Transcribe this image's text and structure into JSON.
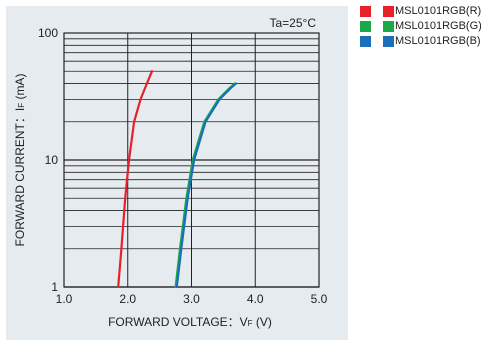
{
  "chart_data": {
    "type": "line",
    "annotation": "Ta=25°C",
    "xlabel": "FORWARD VOLTAGE：V",
    "xlabel_sub": "F",
    "xlabel_unit": " (V)",
    "ylabel": "FORWARD CURRENT：I",
    "ylabel_sub": "F",
    "ylabel_unit": " (mA)",
    "x_ticks": [
      "1.0",
      "2.0",
      "3.0",
      "4.0",
      "5.0"
    ],
    "y_ticks": [
      "1",
      "10",
      "100"
    ],
    "xlim": [
      1.0,
      5.0
    ],
    "ylim": [
      1,
      100
    ],
    "y_scale": "log",
    "grid": true,
    "legend_position": "right",
    "series": [
      {
        "name": "MSL0101RGB(R)",
        "color": "#e8202a",
        "x": [
          1.85,
          1.9,
          1.96,
          2.02,
          2.1,
          2.2,
          2.3,
          2.38
        ],
        "y": [
          1,
          2,
          5,
          10,
          20,
          30,
          40,
          50
        ]
      },
      {
        "name": "MSL0101RGB(G)",
        "color": "#1aa84a",
        "x": [
          2.75,
          2.82,
          2.92,
          3.02,
          3.2,
          3.42,
          3.6,
          3.68
        ],
        "y": [
          1,
          2,
          5,
          10,
          20,
          30,
          37,
          40
        ]
      },
      {
        "name": "MSL0101RGB(B)",
        "color": "#1a6fb8",
        "x": [
          2.77,
          2.84,
          2.94,
          3.04,
          3.22,
          3.44,
          3.62,
          3.7
        ],
        "y": [
          1,
          2,
          5,
          10,
          20,
          30,
          37,
          40
        ]
      }
    ]
  }
}
